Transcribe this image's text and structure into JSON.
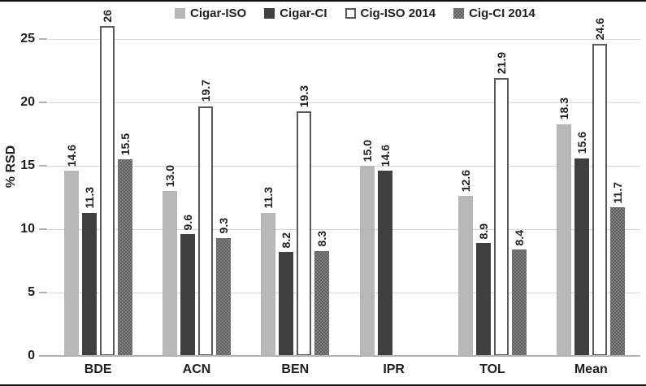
{
  "chart_data": {
    "type": "bar",
    "title": "",
    "ylabel": "% RSD",
    "xlabel": "",
    "categories": [
      "BDE",
      "ACN",
      "BEN",
      "IPR",
      "TOL",
      "Mean"
    ],
    "series": [
      {
        "name": "Cigar-ISO",
        "style": "light",
        "values": [
          14.6,
          13.0,
          11.3,
          15.0,
          12.6,
          18.3
        ],
        "labels": [
          "14.6",
          "13.0",
          "11.3",
          "15.0",
          "12.6",
          "18.3"
        ]
      },
      {
        "name": "Cigar-CI",
        "style": "dark",
        "values": [
          11.3,
          9.6,
          8.2,
          14.6,
          8.9,
          15.6
        ],
        "labels": [
          "11.3",
          "9.6",
          "8.2",
          "14.6",
          "8.9",
          "15.6"
        ]
      },
      {
        "name": "Cig-ISO 2014",
        "style": "outline",
        "values": [
          26,
          19.7,
          19.3,
          null,
          21.9,
          24.6
        ],
        "labels": [
          "26",
          "19.7",
          "19.3",
          "",
          "21.9",
          "24.6"
        ]
      },
      {
        "name": "Cig-CI 2014",
        "style": "pattern",
        "values": [
          15.5,
          9.3,
          8.3,
          null,
          8.4,
          11.7
        ],
        "labels": [
          "15.5",
          "9.3",
          "8.3",
          "",
          "8.4",
          "11.7"
        ]
      }
    ],
    "ylim": [
      0,
      25
    ],
    "yticks": [
      0,
      5,
      10,
      15,
      20,
      25
    ],
    "grid": true,
    "legend_position": "top",
    "colors": {
      "light": "#b7b7b7",
      "dark": "#3f3f3f",
      "outline_fill": "#ffffff",
      "outline_border": "#595959",
      "pattern_base": "#828282",
      "pattern_dot": "#525252",
      "gridline": "#d6d6d6",
      "axis_line": "#b3b3b3",
      "text": "#1f1f1f"
    }
  }
}
